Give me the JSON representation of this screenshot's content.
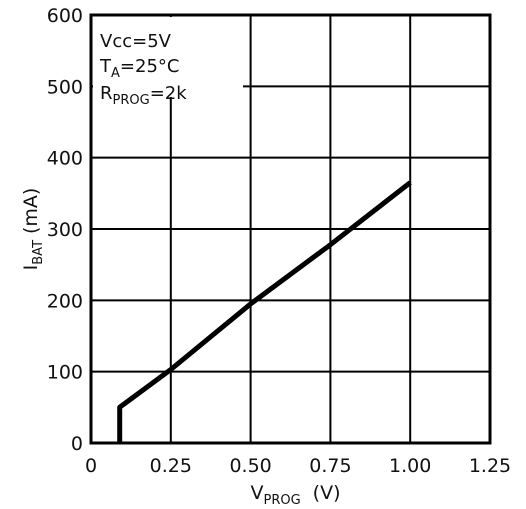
{
  "chart_data": {
    "type": "line",
    "xlim": [
      0,
      1.25
    ],
    "ylim": [
      0,
      600
    ],
    "x_ticks": [
      0.25,
      0.5,
      0.75,
      1.0,
      1.25
    ],
    "x_tick_labels": [
      "0.25",
      "0.50",
      "0.75",
      "1.00",
      "1.25"
    ],
    "x_origin_label": "0",
    "y_ticks": [
      0,
      100,
      200,
      300,
      400,
      500,
      600
    ],
    "y_tick_labels": [
      "0",
      "100",
      "200",
      "300",
      "400",
      "500",
      "600"
    ],
    "grid": true,
    "xlabel": {
      "main": "V",
      "sub": "PROG",
      "unit": "(V)"
    },
    "ylabel": {
      "main": "I",
      "sub": "BAT",
      "unit": "(mA)"
    },
    "annotations": {
      "vcc": "Vcc=5V",
      "ta_main": "T",
      "ta_sub": "A",
      "ta_value": "=25°C",
      "rprog_main": "R",
      "rprog_sub": "PROG",
      "rprog_value": "=2k"
    },
    "series": [
      {
        "x": [
          0.09,
          0.09,
          0.25,
          0.5,
          0.75,
          1.0
        ],
        "y": [
          0,
          50,
          103,
          195,
          278,
          365
        ]
      }
    ],
    "colors": {
      "line": "#000000",
      "grid": "#000000",
      "text": "#111111"
    }
  }
}
